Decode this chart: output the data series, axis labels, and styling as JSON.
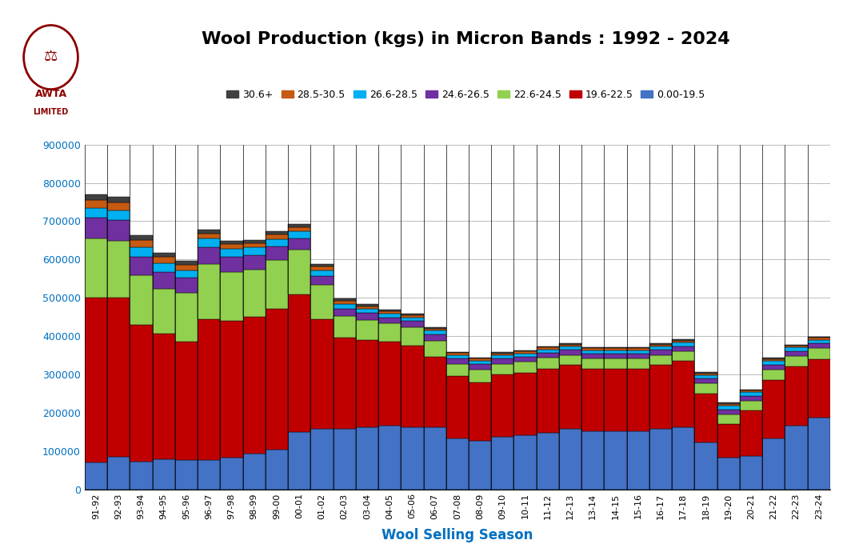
{
  "title": "Wool Production (kgs) in Micron Bands : 1992 - 2024",
  "xlabel": "Wool Selling Season",
  "title_fontsize": 16,
  "xlabel_fontsize": 12,
  "xlabel_color": "#0070C0",
  "background_color": "#FFFFFF",
  "plot_bg_color": "#FFFFFF",
  "grid_color": "#BBBBBB",
  "seasons": [
    "91-92",
    "92-93",
    "93-94",
    "94-95",
    "95-96",
    "96-97",
    "97-98",
    "98-99",
    "99-00",
    "00-01",
    "01-02",
    "02-03",
    "03-04",
    "04-05",
    "05-06",
    "06-07",
    "07-08",
    "08-09",
    "09-10",
    "10-11",
    "11-12",
    "12-13",
    "13-14",
    "14-15",
    "15-16",
    "16-17",
    "17-18",
    "18-19",
    "19-20",
    "20-21",
    "21-22",
    "22-23",
    "23-24"
  ],
  "series": [
    {
      "label": "0.00-19.5",
      "color": "#4472C4",
      "values": [
        70000,
        85000,
        72000,
        78000,
        77000,
        77000,
        82000,
        93000,
        103000,
        150000,
        157000,
        157000,
        162000,
        167000,
        162000,
        162000,
        132000,
        127000,
        137000,
        142000,
        147000,
        157000,
        152000,
        152000,
        152000,
        157000,
        162000,
        122000,
        82000,
        87000,
        132000,
        167000,
        187000
      ]
    },
    {
      "label": "19.6-22.5",
      "color": "#C00000",
      "values": [
        430000,
        415000,
        358000,
        328000,
        308000,
        368000,
        358000,
        358000,
        368000,
        358000,
        288000,
        238000,
        228000,
        218000,
        213000,
        183000,
        163000,
        153000,
        163000,
        163000,
        168000,
        168000,
        163000,
        163000,
        163000,
        168000,
        173000,
        128000,
        88000,
        118000,
        153000,
        153000,
        153000
      ]
    },
    {
      "label": "22.6-24.5",
      "color": "#92D050",
      "values": [
        155000,
        148000,
        128000,
        118000,
        128000,
        143000,
        128000,
        123000,
        128000,
        118000,
        88000,
        58000,
        53000,
        48000,
        48000,
        43000,
        33000,
        33000,
        28000,
        28000,
        28000,
        26000,
        26000,
        26000,
        26000,
        26000,
        26000,
        26000,
        26000,
        26000,
        28000,
        28000,
        28000
      ]
    },
    {
      "label": "24.6-26.5",
      "color": "#7030A0",
      "values": [
        55000,
        54000,
        49000,
        44000,
        39000,
        44000,
        39000,
        37000,
        35000,
        29000,
        24000,
        19000,
        17000,
        16000,
        16000,
        16000,
        14000,
        14000,
        13000,
        13000,
        13000,
        13000,
        13000,
        13000,
        13000,
        13000,
        13000,
        13000,
        13000,
        13000,
        13000,
        13000,
        13000
      ]
    },
    {
      "label": "26.6-28.5",
      "color": "#00B0F0",
      "values": [
        25000,
        27000,
        25000,
        23000,
        20000,
        22000,
        20000,
        20000,
        19000,
        18000,
        15000,
        12000,
        11000,
        10000,
        10000,
        10000,
        9000,
        9000,
        9000,
        9000,
        9000,
        9000,
        9000,
        9000,
        9000,
        9000,
        9000,
        9000,
        9000,
        9000,
        9000,
        9000,
        9000
      ]
    },
    {
      "label": "28.5-30.5",
      "color": "#C55A11",
      "values": [
        20000,
        20000,
        18000,
        15000,
        14000,
        14000,
        13000,
        12000,
        12000,
        11000,
        9000,
        8000,
        7000,
        6000,
        6000,
        6000,
        5000,
        5000,
        5000,
        5000,
        5000,
        5000,
        5000,
        5000,
        5000,
        5000,
        5000,
        5000,
        5000,
        5000,
        5000,
        5000,
        5000
      ]
    },
    {
      "label": "30.6+",
      "color": "#404040",
      "values": [
        15000,
        14000,
        13000,
        11000,
        10000,
        10000,
        9000,
        8000,
        8000,
        8000,
        7000,
        6000,
        5000,
        4000,
        4000,
        4000,
        3000,
        3000,
        3000,
        3000,
        3000,
        3000,
        3000,
        3000,
        3000,
        3000,
        3000,
        3000,
        3000,
        3000,
        3000,
        3000,
        3000
      ]
    }
  ],
  "legend_order": [
    "30.6+",
    "28.5-30.5",
    "26.6-28.5",
    "24.6-26.5",
    "22.6-24.5",
    "19.6-22.5",
    "0.00-19.5"
  ],
  "legend_colors": [
    "#404040",
    "#C55A11",
    "#00B0F0",
    "#7030A0",
    "#92D050",
    "#C00000",
    "#4472C4"
  ],
  "ylim": [
    0,
    900000
  ],
  "yticks": [
    0,
    100000,
    200000,
    300000,
    400000,
    500000,
    600000,
    700000,
    800000,
    900000
  ]
}
